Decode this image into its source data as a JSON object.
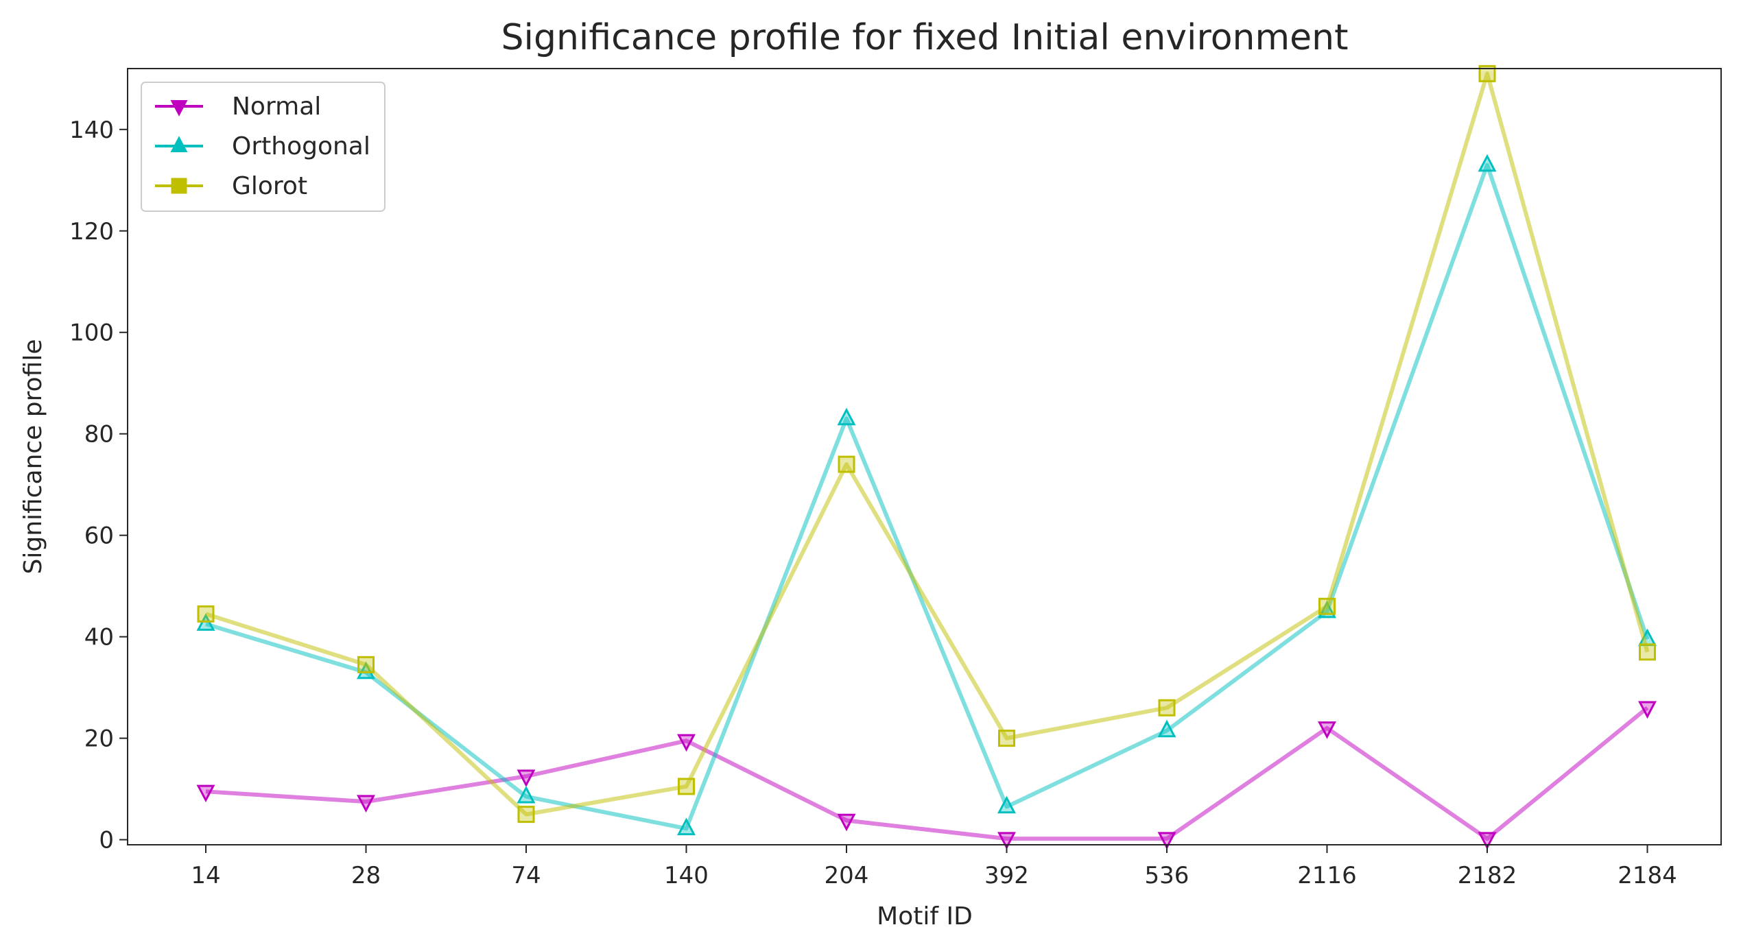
{
  "chart_data": {
    "type": "line",
    "title": "Significance profile for fixed Initial environment",
    "xlabel": "Motif ID",
    "ylabel": "Significance profile",
    "categories": [
      "14",
      "28",
      "74",
      "140",
      "204",
      "392",
      "536",
      "2116",
      "2182",
      "2184"
    ],
    "ylim": [
      -1,
      152
    ],
    "yticks": [
      0,
      20,
      40,
      60,
      80,
      100,
      120,
      140
    ],
    "grid": false,
    "legend_position": "top-left",
    "series": [
      {
        "name": "Normal",
        "color": "#bf00bf",
        "marker": "triangle-down",
        "values": [
          9.5,
          7.5,
          12.5,
          19.5,
          3.8,
          0.2,
          0.2,
          22,
          0.2,
          26
        ]
      },
      {
        "name": "Orthogonal",
        "color": "#00bfbf",
        "marker": "triangle-up",
        "values": [
          42.5,
          33,
          8.5,
          2.2,
          83,
          6.5,
          21.5,
          45,
          133,
          39.5
        ]
      },
      {
        "name": "Glorot",
        "color": "#bfbf00",
        "marker": "square",
        "values": [
          44.5,
          34.5,
          5,
          10.5,
          74,
          20,
          26,
          46,
          151,
          37
        ]
      }
    ]
  }
}
